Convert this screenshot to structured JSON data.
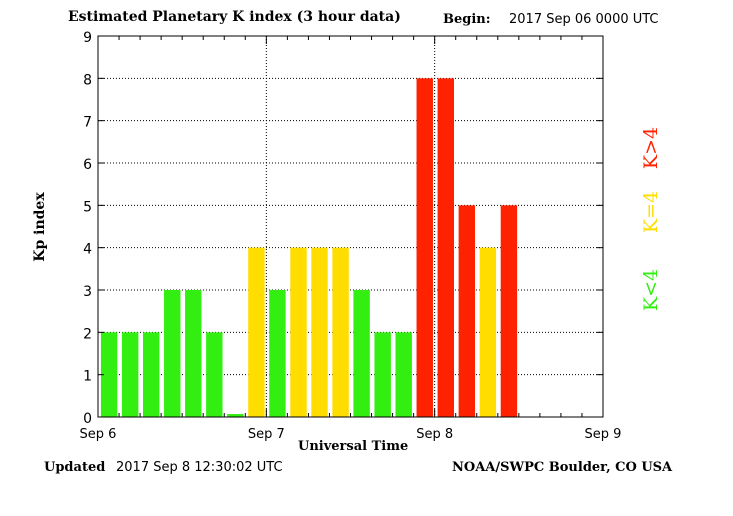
{
  "header": {
    "title": "Estimated Planetary K index (3 hour data)",
    "begin_label": "Begin:",
    "begin_value": "2017 Sep 06 0000 UTC"
  },
  "footer": {
    "updated_label": "Updated",
    "updated_value": "2017 Sep  8 12:30:02 UTC",
    "source": "NOAA/SWPC Boulder, CO USA"
  },
  "colors": {
    "low": "#33ee11",
    "mid": "#ffdd00",
    "high": "#ff2200"
  },
  "chart_data": {
    "type": "bar",
    "title": "Estimated Planetary K index (3 hour data)",
    "xlabel": "Universal Time",
    "ylabel": "Kp index",
    "ylim": [
      0,
      9
    ],
    "yticks": [
      "0",
      "1",
      "2",
      "3",
      "4",
      "5",
      "6",
      "7",
      "8",
      "9"
    ],
    "xticks": [
      "Sep 6",
      "Sep 7",
      "Sep 8",
      "Sep 9"
    ],
    "grid": true,
    "legend": {
      "placement": "right",
      "entries": [
        {
          "label": "K<4",
          "color": "#33ee11"
        },
        {
          "label": "K=4",
          "color": "#ffdd00"
        },
        {
          "label": "K>4",
          "color": "#ff2200"
        }
      ]
    },
    "values": [
      2,
      2,
      2,
      3,
      3,
      2,
      0.07,
      4,
      3,
      4,
      4,
      4,
      3,
      2,
      2,
      8,
      8,
      5,
      4,
      5
    ],
    "total_slots": 24,
    "slot_hours": 3
  }
}
